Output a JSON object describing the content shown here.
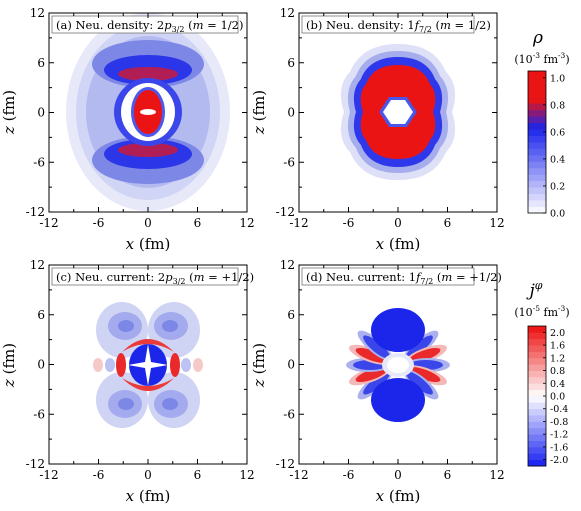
{
  "chart_data": [
    {
      "type": "heatmap",
      "title_parts": [
        "(a) Neu. density: 2",
        "p",
        "3/2",
        " (",
        "m",
        " = 1/2)"
      ],
      "xlabel_var": "x",
      "xlabel_unit": " (fm)",
      "ylabel_var": "z",
      "ylabel_unit": " (fm)",
      "xlim": [
        -12,
        12
      ],
      "ylim": [
        -12,
        12
      ],
      "xticks": [
        -12,
        -6,
        0,
        6,
        12
      ],
      "yticks": [
        -12,
        -6,
        0,
        6,
        12
      ],
      "quantity": "rho",
      "grid": false
    },
    {
      "type": "heatmap",
      "title_parts": [
        "(b) Neu. density: 1",
        "f",
        "7/2",
        " (",
        "m",
        " = 1/2)"
      ],
      "xlabel_var": "x",
      "xlabel_unit": " (fm)",
      "ylabel_var": "z",
      "ylabel_unit": " (fm)",
      "xlim": [
        -12,
        12
      ],
      "ylim": [
        -12,
        12
      ],
      "xticks": [
        -12,
        -6,
        0,
        6,
        12
      ],
      "yticks": [
        -12,
        -6,
        0,
        6,
        12
      ],
      "quantity": "rho",
      "grid": false
    },
    {
      "type": "heatmap",
      "title_parts": [
        "(c) Neu. current: 2",
        "p",
        "3/2",
        " (",
        "m",
        " = +1/2)"
      ],
      "xlabel_var": "x",
      "xlabel_unit": " (fm)",
      "ylabel_var": "z",
      "ylabel_unit": " (fm)",
      "xlim": [
        -12,
        12
      ],
      "ylim": [
        -12,
        12
      ],
      "xticks": [
        -12,
        -6,
        0,
        6,
        12
      ],
      "yticks": [
        -12,
        -6,
        0,
        6,
        12
      ],
      "quantity": "j_phi",
      "grid": false
    },
    {
      "type": "heatmap",
      "title_parts": [
        "(d) Neu. current: 1",
        "f",
        "7/2",
        " (",
        "m",
        " = +1/2)"
      ],
      "xlabel_var": "x",
      "xlabel_unit": " (fm)",
      "ylabel_var": "z",
      "ylabel_unit": " (fm)",
      "xlim": [
        -12,
        12
      ],
      "ylim": [
        -12,
        12
      ],
      "xticks": [
        -12,
        -6,
        0,
        6,
        12
      ],
      "yticks": [
        -12,
        -6,
        0,
        6,
        12
      ],
      "quantity": "j_phi",
      "grid": false
    }
  ],
  "colorbars": [
    {
      "symbol": "ρ",
      "unit_base": "(10",
      "unit_exp": "-3",
      "unit_mid": " fm",
      "unit_exp2": "-3",
      "unit_end": ")",
      "range": [
        0.0,
        1.05
      ],
      "ticks": [
        "0.0",
        "0.2",
        "0.4",
        "0.6",
        "0.8",
        "1.0"
      ],
      "tick_values": [
        0.0,
        0.2,
        0.4,
        0.6,
        0.8,
        1.0
      ],
      "colormap": "white-blue-red"
    },
    {
      "symbol_base": "j",
      "symbol_sup": "φ",
      "unit_base": "(10",
      "unit_exp": "-5",
      "unit_mid": " fm",
      "unit_exp2": "-3",
      "unit_end": ")",
      "range": [
        -2.2,
        2.2
      ],
      "ticks": [
        "2.0",
        "1.6",
        "1.2",
        "0.8",
        "0.4",
        "0.0",
        "-0.4",
        "-0.8",
        "-1.2",
        "-1.6",
        "-2.0"
      ],
      "tick_values": [
        2.0,
        1.6,
        1.2,
        0.8,
        0.4,
        0.0,
        -0.4,
        -0.8,
        -1.2,
        -1.6,
        -2.0
      ],
      "colormap": "blue-white-red"
    }
  ]
}
